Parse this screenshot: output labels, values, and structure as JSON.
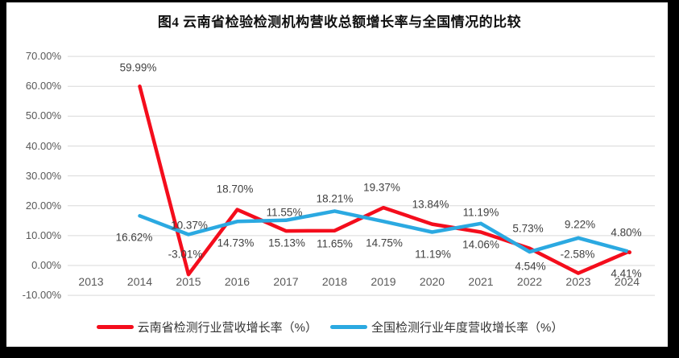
{
  "title": "图4 云南省检验检测机构营收总额增长率与全国情况的比较",
  "chart_data": {
    "type": "line",
    "title": "图4 云南省检验检测机构营收总额增长率与全国情况的比较",
    "categories": [
      "2013",
      "2014",
      "2015",
      "2016",
      "2017",
      "2018",
      "2019",
      "2020",
      "2021",
      "2022",
      "2023",
      "2024"
    ],
    "series": [
      {
        "name": "云南省检测行业营收增长率（%）",
        "color": "#F40D1C",
        "values": [
          null,
          59.99,
          -3.01,
          18.7,
          11.55,
          11.65,
          19.37,
          13.84,
          11.19,
          5.73,
          -2.58,
          4.41
        ],
        "labels": [
          "",
          "59.99%",
          "-3.01%",
          "18.70%",
          "11.55%",
          "11.65%",
          "19.37%",
          "13.84%",
          "11.19%",
          "5.73%",
          "-2.58%",
          "4.41%"
        ]
      },
      {
        "name": "全国检测行业年度营收增长率（%）",
        "color": "#2BA9E1",
        "values": [
          null,
          16.62,
          10.37,
          14.73,
          15.13,
          18.21,
          14.75,
          11.19,
          14.06,
          4.54,
          9.22,
          4.8
        ],
        "labels": [
          "",
          "16.62%",
          "10.37%",
          "14.73%",
          "15.13%",
          "18.21%",
          "14.75%",
          "11.19%",
          "14.06%",
          "4.54%",
          "9.22%",
          "4.80%"
        ]
      }
    ],
    "y_axis": {
      "ticks": [
        "70.00%",
        "60.00%",
        "50.00%",
        "40.00%",
        "30.00%",
        "20.00%",
        "10.00%",
        "0.00%",
        "-10.00%"
      ],
      "max": 70,
      "min": -10,
      "step": 10
    },
    "grid": true,
    "legend_position": "bottom"
  },
  "colors": {
    "grid": "#D9D9D9",
    "axis_text": "#595959",
    "data_label_text": "#404040",
    "background": "#FFFFFF",
    "frame": "#000000"
  }
}
